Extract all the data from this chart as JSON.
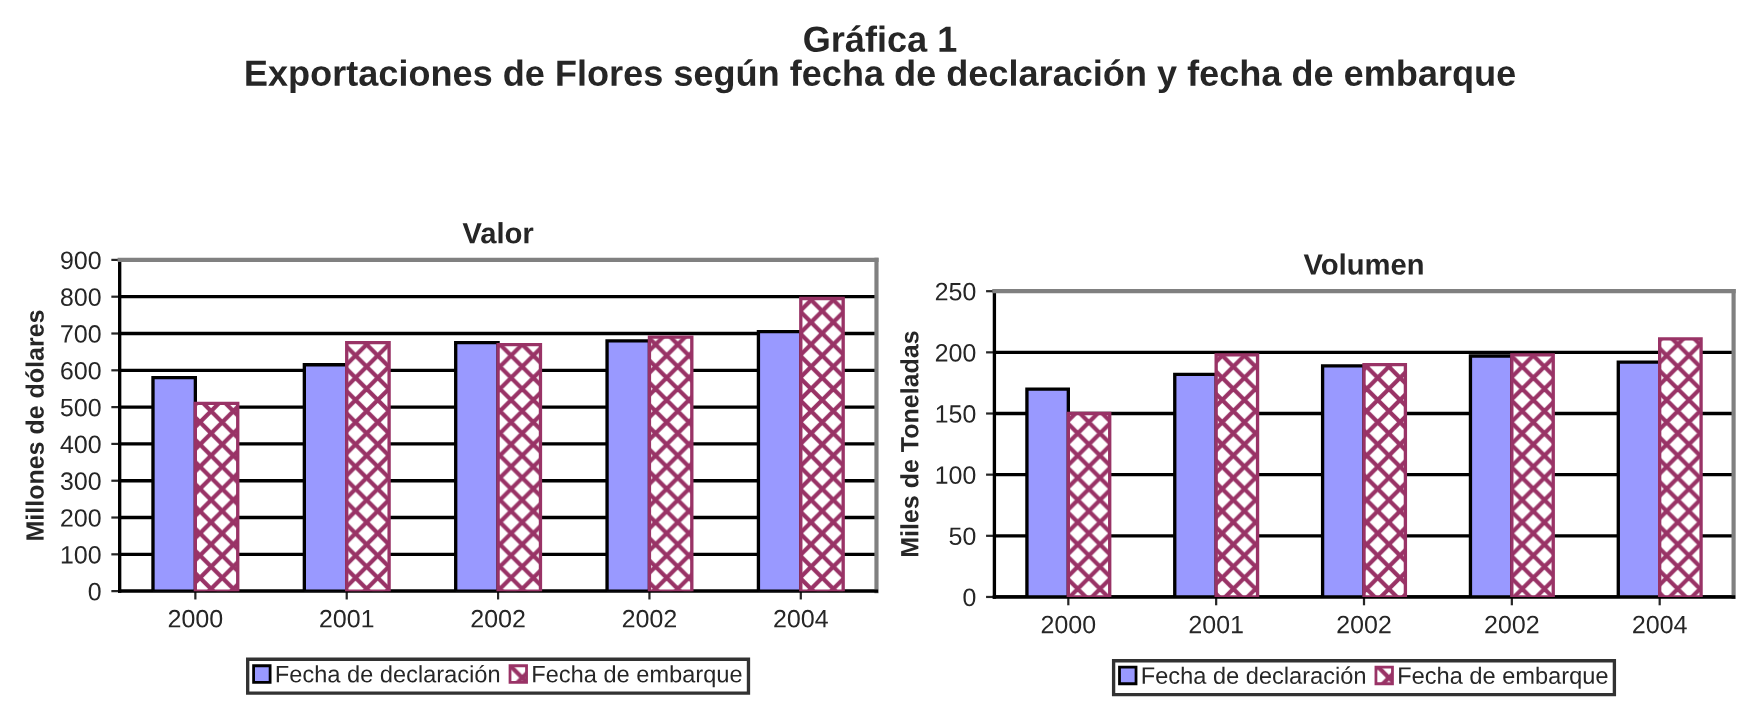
{
  "chart_data": [
    {
      "type": "bar",
      "title": "Valor",
      "ylabel": "Millones de dólares",
      "annotations": [
        "Gráfica 1\nExportaciones de Flores según fecha de declaración y fecha de embarque"
      ],
      "categories": [
        "2000",
        "2001",
        "2002",
        "2002",
        "2004"
      ],
      "series": [
        {
          "name": "Fecha de declaración",
          "color": "#9999ff",
          "values": [
            580,
            615,
            675,
            680,
            705
          ]
        },
        {
          "name": "Fecha de embarque",
          "color": "#993366",
          "values": [
            510,
            675,
            670,
            690,
            795
          ]
        }
      ],
      "ylim": [
        0,
        900
      ],
      "yticks": [
        0,
        100,
        200,
        300,
        400,
        500,
        600,
        700,
        800,
        900
      ],
      "grid": "y",
      "legend": "bottom"
    },
    {
      "type": "bar",
      "title": "Volumen",
      "ylabel": "Miles de Toneladas",
      "categories": [
        "2000",
        "2001",
        "2002",
        "2002",
        "2004"
      ],
      "series": [
        {
          "name": "Fecha de declaración",
          "color": "#9999ff",
          "values": [
            170,
            182,
            189,
            197,
            192
          ]
        },
        {
          "name": "Fecha de embarque",
          "color": "#993366",
          "values": [
            150,
            198,
            190,
            198,
            211
          ]
        }
      ],
      "ylim": [
        0,
        250
      ],
      "yticks": [
        0,
        50,
        100,
        150,
        200,
        250
      ],
      "grid": "y",
      "legend": "bottom"
    }
  ]
}
